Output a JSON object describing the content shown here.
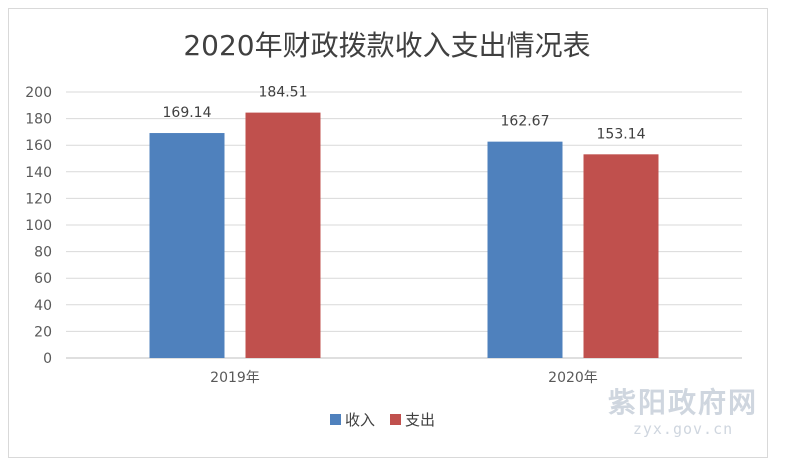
{
  "chart_data": {
    "type": "bar",
    "title": "2020年财政拨款收入支出情况表",
    "categories": [
      "2019年",
      "2020年"
    ],
    "series": [
      {
        "name": "收入",
        "values": [
          169.14,
          162.67
        ],
        "color": "#4f81bd"
      },
      {
        "name": "支出",
        "values": [
          184.51,
          153.14
        ],
        "color": "#c0504d"
      }
    ],
    "ylim": [
      0,
      200
    ],
    "y_ticks": [
      "0",
      "20",
      "40",
      "60",
      "80",
      "100",
      "120",
      "140",
      "160",
      "180",
      "200"
    ],
    "data_labels": [
      [
        "169.14",
        "162.67"
      ],
      [
        "184.51",
        "153.14"
      ]
    ],
    "grid": true,
    "legend": "bottom",
    "xlabel": "",
    "ylabel": ""
  },
  "watermark": {
    "main": "紫阳政府网",
    "sub": "zyx.gov.cn"
  }
}
